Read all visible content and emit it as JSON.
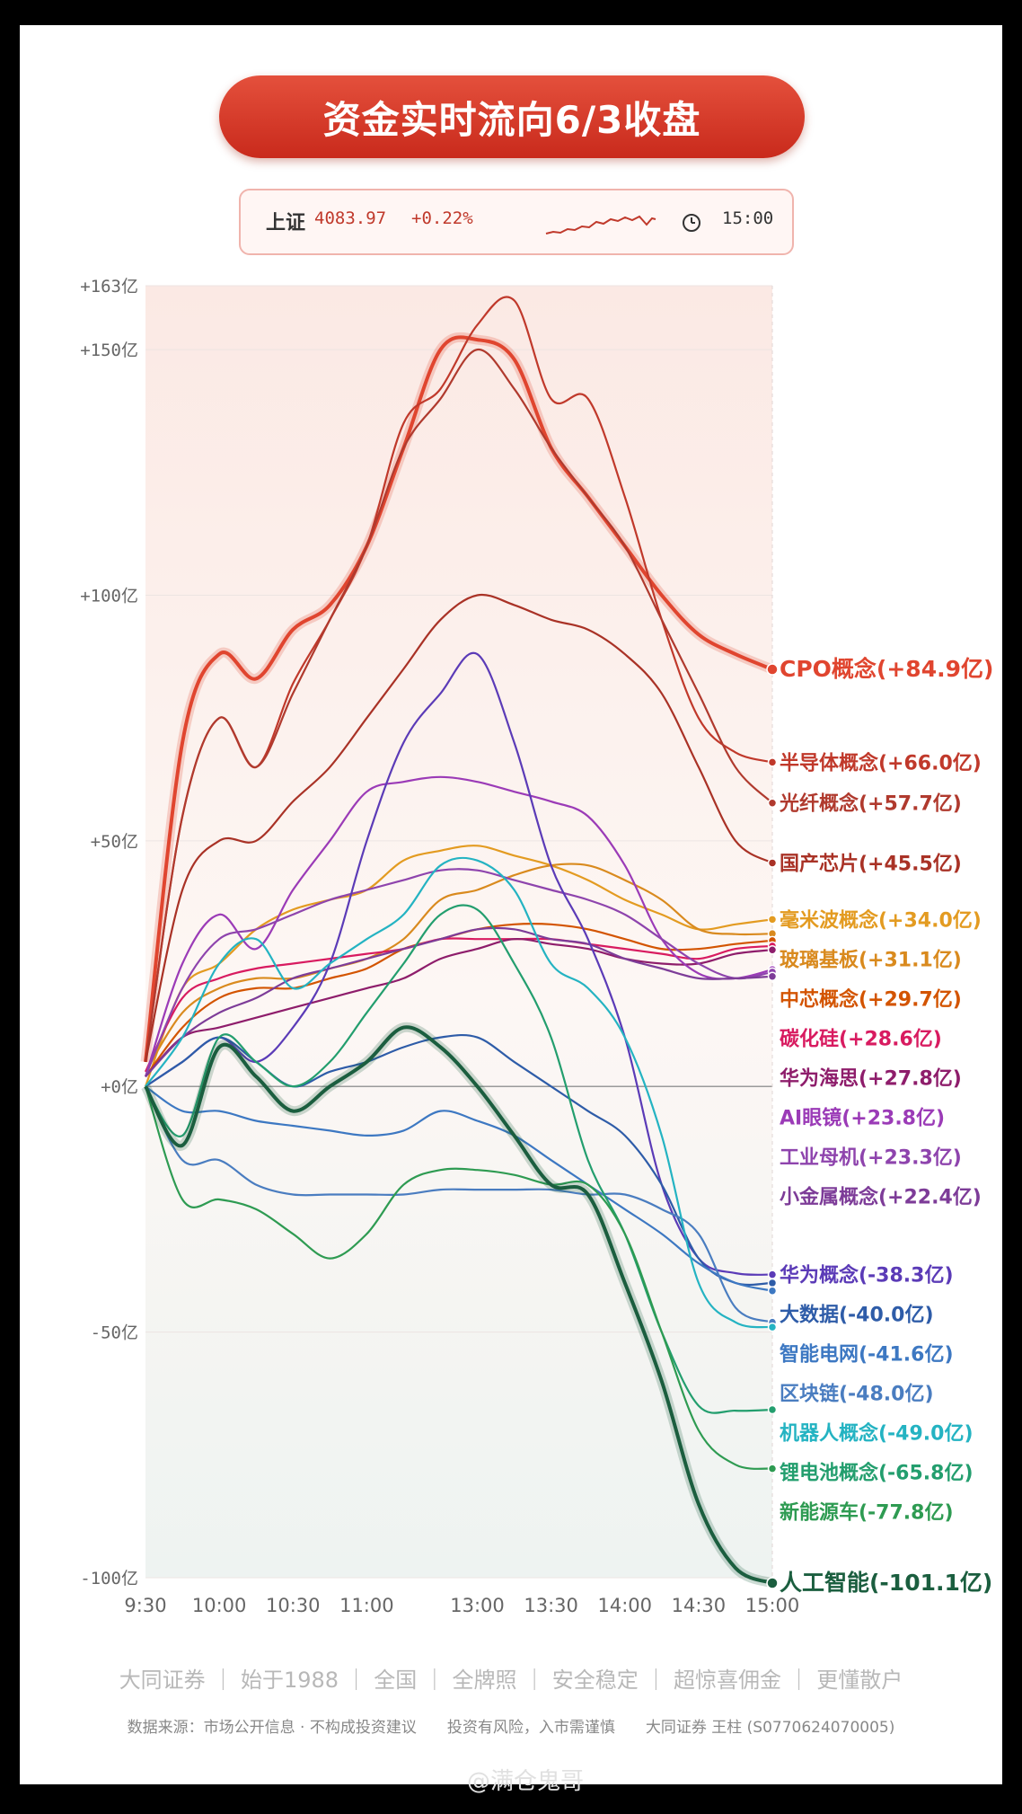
{
  "header": {
    "title": "资金实时流向6/3收盘"
  },
  "index_box": {
    "name": "上证",
    "value": "4083.97",
    "change": "+0.22%",
    "time": "15:00"
  },
  "footer": {
    "slogan": "大同证券 ｜ 始于1988 ｜ 全国 ｜ 全牌照 ｜ 安全稳定 ｜ 超惊喜佣金 ｜ 更懂散户",
    "source": "数据来源：市场公开信息 · 不构成投资建议　　投资有风险，入市需谨慎　　大同证券 王柱 (S0770624070005)"
  },
  "watermark": "@满仓鬼哥",
  "chart_data": {
    "type": "line",
    "title": "资金实时流向6/3收盘",
    "x": [
      "9:30",
      "9:45",
      "10:00",
      "10:15",
      "10:30",
      "10:45",
      "11:00",
      "11:15",
      "12:00",
      "13:00",
      "13:15",
      "13:30",
      "13:45",
      "14:00",
      "14:15",
      "14:30",
      "14:45",
      "15:00"
    ],
    "x_ticks": [
      "9:30",
      "10:00",
      "10:30",
      "11:00",
      "13:00",
      "13:30",
      "14:00",
      "14:30",
      "15:00"
    ],
    "y_ticks": [
      "+163亿",
      "+150亿",
      "+100亿",
      "+50亿",
      "+0亿",
      "-50亿",
      "-100亿"
    ],
    "y_tick_values": [
      163,
      150,
      100,
      50,
      0,
      -50,
      -100
    ],
    "ylim": [
      -100,
      163
    ],
    "grid": true,
    "series": [
      {
        "name": "CPO概念",
        "label": "CPO概念(+84.9亿)",
        "color": "#e0452f",
        "highlight": true,
        "values": [
          5,
          70,
          88,
          83,
          93,
          98,
          110,
          130,
          150,
          152,
          148,
          130,
          120,
          110,
          100,
          92,
          88,
          84.9
        ]
      },
      {
        "name": "半导体概念",
        "label": "半导体概念(+66.0亿)",
        "color": "#c0392b",
        "values": [
          5,
          55,
          75,
          65,
          82,
          95,
          110,
          135,
          142,
          155,
          160,
          140,
          140,
          120,
          95,
          75,
          68,
          66.0
        ]
      },
      {
        "name": "光纤概念",
        "label": "光纤概念(+57.7亿)",
        "color": "#b03a2e",
        "values": [
          5,
          55,
          75,
          65,
          80,
          95,
          110,
          130,
          140,
          150,
          142,
          130,
          120,
          110,
          95,
          80,
          65,
          57.7
        ]
      },
      {
        "name": "国产芯片",
        "label": "国产芯片(+45.5亿)",
        "color": "#a93226",
        "values": [
          5,
          40,
          50,
          50,
          58,
          65,
          75,
          85,
          95,
          100,
          98,
          95,
          93,
          88,
          80,
          65,
          50,
          45.5
        ]
      },
      {
        "name": "毫米波概念",
        "label": "毫米波概念(+34.0亿)",
        "color": "#e39b21",
        "values": [
          0,
          20,
          25,
          32,
          36,
          38,
          40,
          46,
          48,
          49,
          47,
          45,
          42,
          38,
          35,
          32,
          33,
          34.0
        ]
      },
      {
        "name": "玻璃基板",
        "label": "玻璃基板(+31.1亿)",
        "color": "#d98a1e",
        "values": [
          3,
          15,
          20,
          22,
          22,
          24,
          26,
          30,
          38,
          40,
          43,
          45,
          45,
          42,
          38,
          32,
          31,
          31.1
        ]
      },
      {
        "name": "中芯概念",
        "label": "中芯概念(+29.7亿)",
        "color": "#d35400",
        "values": [
          2,
          12,
          18,
          20,
          20,
          22,
          24,
          28,
          30,
          32,
          33,
          33,
          32,
          30,
          28,
          28,
          29,
          29.7
        ]
      },
      {
        "name": "碳化硅",
        "label": "碳化硅(+28.6亿)",
        "color": "#d81b60",
        "values": [
          3,
          18,
          22,
          24,
          25,
          26,
          27,
          28,
          30,
          30,
          30,
          30,
          29,
          28,
          27,
          26,
          28,
          28.6
        ]
      },
      {
        "name": "华为海思",
        "label": "华为海思(+27.8亿)",
        "color": "#8e1d6b",
        "values": [
          2,
          10,
          12,
          14,
          16,
          18,
          20,
          22,
          26,
          28,
          30,
          29,
          28,
          26,
          25,
          25,
          27,
          27.8
        ]
      },
      {
        "name": "AI眼镜",
        "label": "AI眼镜(+23.8亿)",
        "color": "#9b3bb7",
        "values": [
          2,
          25,
          35,
          28,
          40,
          50,
          60,
          62,
          63,
          62,
          60,
          58,
          55,
          45,
          30,
          23,
          22,
          23.8
        ]
      },
      {
        "name": "工业母机",
        "label": "工业母机(+23.3亿)",
        "color": "#8e44ad",
        "values": [
          2,
          20,
          30,
          32,
          35,
          38,
          40,
          42,
          44,
          44,
          42,
          40,
          38,
          35,
          30,
          25,
          22,
          23.3
        ]
      },
      {
        "name": "小金属概念",
        "label": "小金属概念(+22.4亿)",
        "color": "#7d3c98",
        "values": [
          2,
          10,
          15,
          18,
          22,
          24,
          26,
          28,
          30,
          32,
          32,
          30,
          29,
          26,
          24,
          22,
          22,
          22.4
        ]
      },
      {
        "name": "华为概念",
        "label": "华为概念(-38.3亿)",
        "color": "#5b3bb7",
        "values": [
          0,
          5,
          10,
          5,
          12,
          25,
          50,
          70,
          80,
          88,
          70,
          45,
          30,
          10,
          -20,
          -35,
          -38,
          -38.3
        ]
      },
      {
        "name": "大数据",
        "label": "大数据(-40.0亿)",
        "color": "#2e5ca8",
        "values": [
          0,
          5,
          10,
          5,
          0,
          3,
          5,
          8,
          10,
          10,
          5,
          0,
          -5,
          -10,
          -20,
          -35,
          -40,
          -40.0
        ]
      },
      {
        "name": "智能电网",
        "label": "智能电网(-41.6亿)",
        "color": "#3d78c2",
        "values": [
          0,
          -5,
          -5,
          -7,
          -8,
          -9,
          -10,
          -9,
          -5,
          -7,
          -10,
          -15,
          -20,
          -25,
          -30,
          -36,
          -40,
          -41.6
        ]
      },
      {
        "name": "区块链",
        "label": "区块链(-48.0亿)",
        "color": "#4a7dc0",
        "values": [
          0,
          -15,
          -15,
          -20,
          -22,
          -22,
          -22,
          -22,
          -21,
          -21,
          -21,
          -21,
          -22,
          -22,
          -25,
          -30,
          -45,
          -48.0
        ]
      },
      {
        "name": "机器人概念",
        "label": "机器人概念(-49.0亿)",
        "color": "#24b3c2",
        "values": [
          0,
          10,
          25,
          30,
          20,
          25,
          30,
          35,
          45,
          46,
          40,
          25,
          20,
          10,
          -10,
          -40,
          -48,
          -49.0
        ]
      },
      {
        "name": "锂电池概念",
        "label": "锂电池概念(-65.8亿)",
        "color": "#239e6e",
        "values": [
          0,
          -10,
          10,
          5,
          0,
          5,
          15,
          25,
          35,
          36,
          25,
          10,
          -15,
          -30,
          -50,
          -65,
          -66,
          -65.8
        ]
      },
      {
        "name": "新能源车",
        "label": "新能源车(-77.8亿)",
        "color": "#2e9b52",
        "values": [
          0,
          -23,
          -23,
          -25,
          -30,
          -35,
          -30,
          -20,
          -17,
          -17,
          -18,
          -20,
          -20,
          -30,
          -50,
          -70,
          -77,
          -77.8
        ]
      },
      {
        "name": "人工智能",
        "label": "人工智能(-101.1亿)",
        "color": "#1b5e3f",
        "highlight": true,
        "values": [
          0,
          -12,
          8,
          2,
          -5,
          0,
          5,
          12,
          8,
          0,
          -10,
          -20,
          -22,
          -40,
          -60,
          -85,
          -98,
          -101.1
        ]
      }
    ]
  }
}
